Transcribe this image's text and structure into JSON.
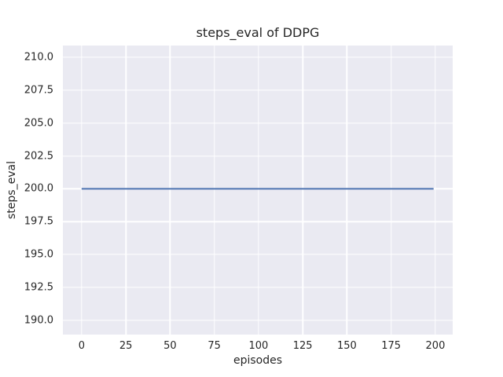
{
  "figure": {
    "background": "#ffffff"
  },
  "chart_data": {
    "type": "line",
    "title": "steps_eval of DDPG",
    "xlabel": "episodes",
    "ylabel": "steps_eval",
    "xlim": [
      -10.6,
      209.8
    ],
    "ylim": [
      188.9,
      210.9
    ],
    "xticks": [
      "0",
      "25",
      "50",
      "75",
      "100",
      "125",
      "150",
      "175",
      "200"
    ],
    "yticks": [
      "190.0",
      "192.5",
      "195.0",
      "197.5",
      "200.0",
      "202.5",
      "205.0",
      "207.5",
      "210.0"
    ],
    "grid": true,
    "legend": "none",
    "series": [
      {
        "name": "DDPG",
        "color": "#4c72b0",
        "x": [
          0,
          199
        ],
        "y": [
          200.0,
          200.0
        ],
        "description": "constant steps_eval of 200.0 across episodes 0-199"
      }
    ],
    "style": {
      "axes_background": "#eaeaf2",
      "grid_color": "#ffffff",
      "text_color": "#262626",
      "line_width": 2
    }
  }
}
